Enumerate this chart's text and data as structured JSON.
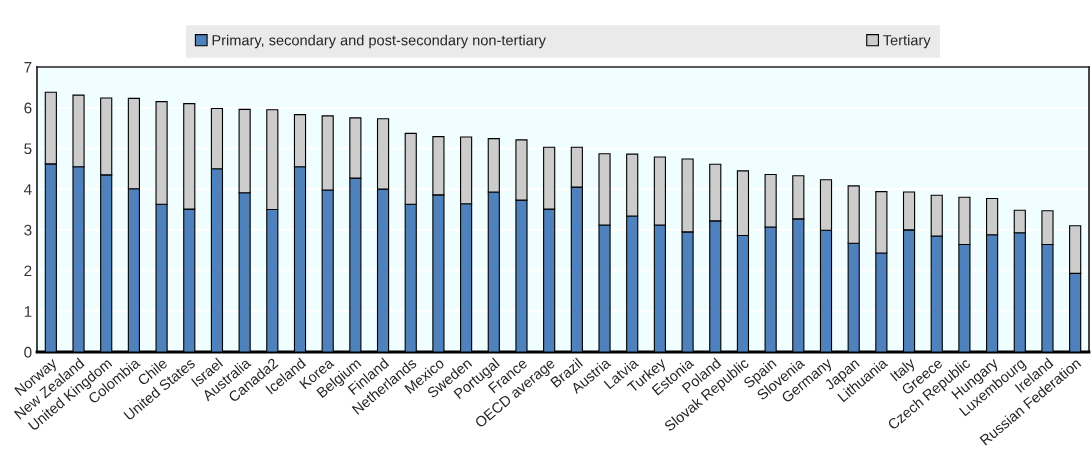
{
  "chart_data": {
    "type": "bar",
    "stacked": true,
    "categories": [
      "Norway",
      "New Zealand",
      "United Kingdom",
      "Colombia",
      "Chile",
      "United States",
      "Israel",
      "Australia",
      "Canada2",
      "Iceland",
      "Korea",
      "Belgium",
      "Finland",
      "Netherlands",
      "Mexico",
      "Sweden",
      "Portugal",
      "France",
      "OECD average",
      "Brazil",
      "Austria",
      "Latvia",
      "Turkey",
      "Estonia",
      "Poland",
      "Slovak Republic",
      "Spain",
      "Slovenia",
      "Germany",
      "Japan",
      "Lithuania",
      "Italy",
      "Greece",
      "Czech Republic",
      "Hungary",
      "Luxembourg",
      "Ireland",
      "Russian Federation"
    ],
    "series": [
      {
        "name": "Primary, secondary and post-secondary non-tertiary",
        "color": "#4f81bd",
        "values": [
          4.62,
          4.55,
          4.35,
          4.01,
          3.63,
          3.51,
          4.5,
          3.91,
          3.5,
          4.55,
          3.98,
          4.27,
          4.0,
          3.63,
          3.86,
          3.64,
          3.93,
          3.73,
          3.51,
          4.05,
          3.12,
          3.34,
          3.12,
          2.95,
          3.22,
          2.86,
          3.07,
          3.27,
          2.99,
          2.67,
          2.43,
          3.0,
          2.85,
          2.64,
          2.88,
          2.93,
          2.64,
          1.93
        ]
      },
      {
        "name": "Tertiary",
        "color": "#cccccc",
        "values": [
          1.76,
          1.76,
          1.89,
          2.22,
          2.52,
          2.59,
          1.48,
          2.05,
          2.45,
          1.28,
          1.82,
          1.48,
          1.73,
          1.74,
          1.43,
          1.64,
          1.31,
          1.48,
          1.52,
          0.98,
          1.75,
          1.52,
          1.67,
          1.79,
          1.39,
          1.59,
          1.29,
          1.06,
          1.24,
          1.41,
          1.51,
          0.93,
          1.0,
          1.16,
          0.89,
          0.55,
          0.83,
          1.17
        ]
      }
    ],
    "ylim": [
      0,
      7
    ],
    "yticks": [
      0,
      1,
      2,
      3,
      4,
      5,
      6,
      7
    ],
    "grid": "y",
    "legend": "top"
  }
}
